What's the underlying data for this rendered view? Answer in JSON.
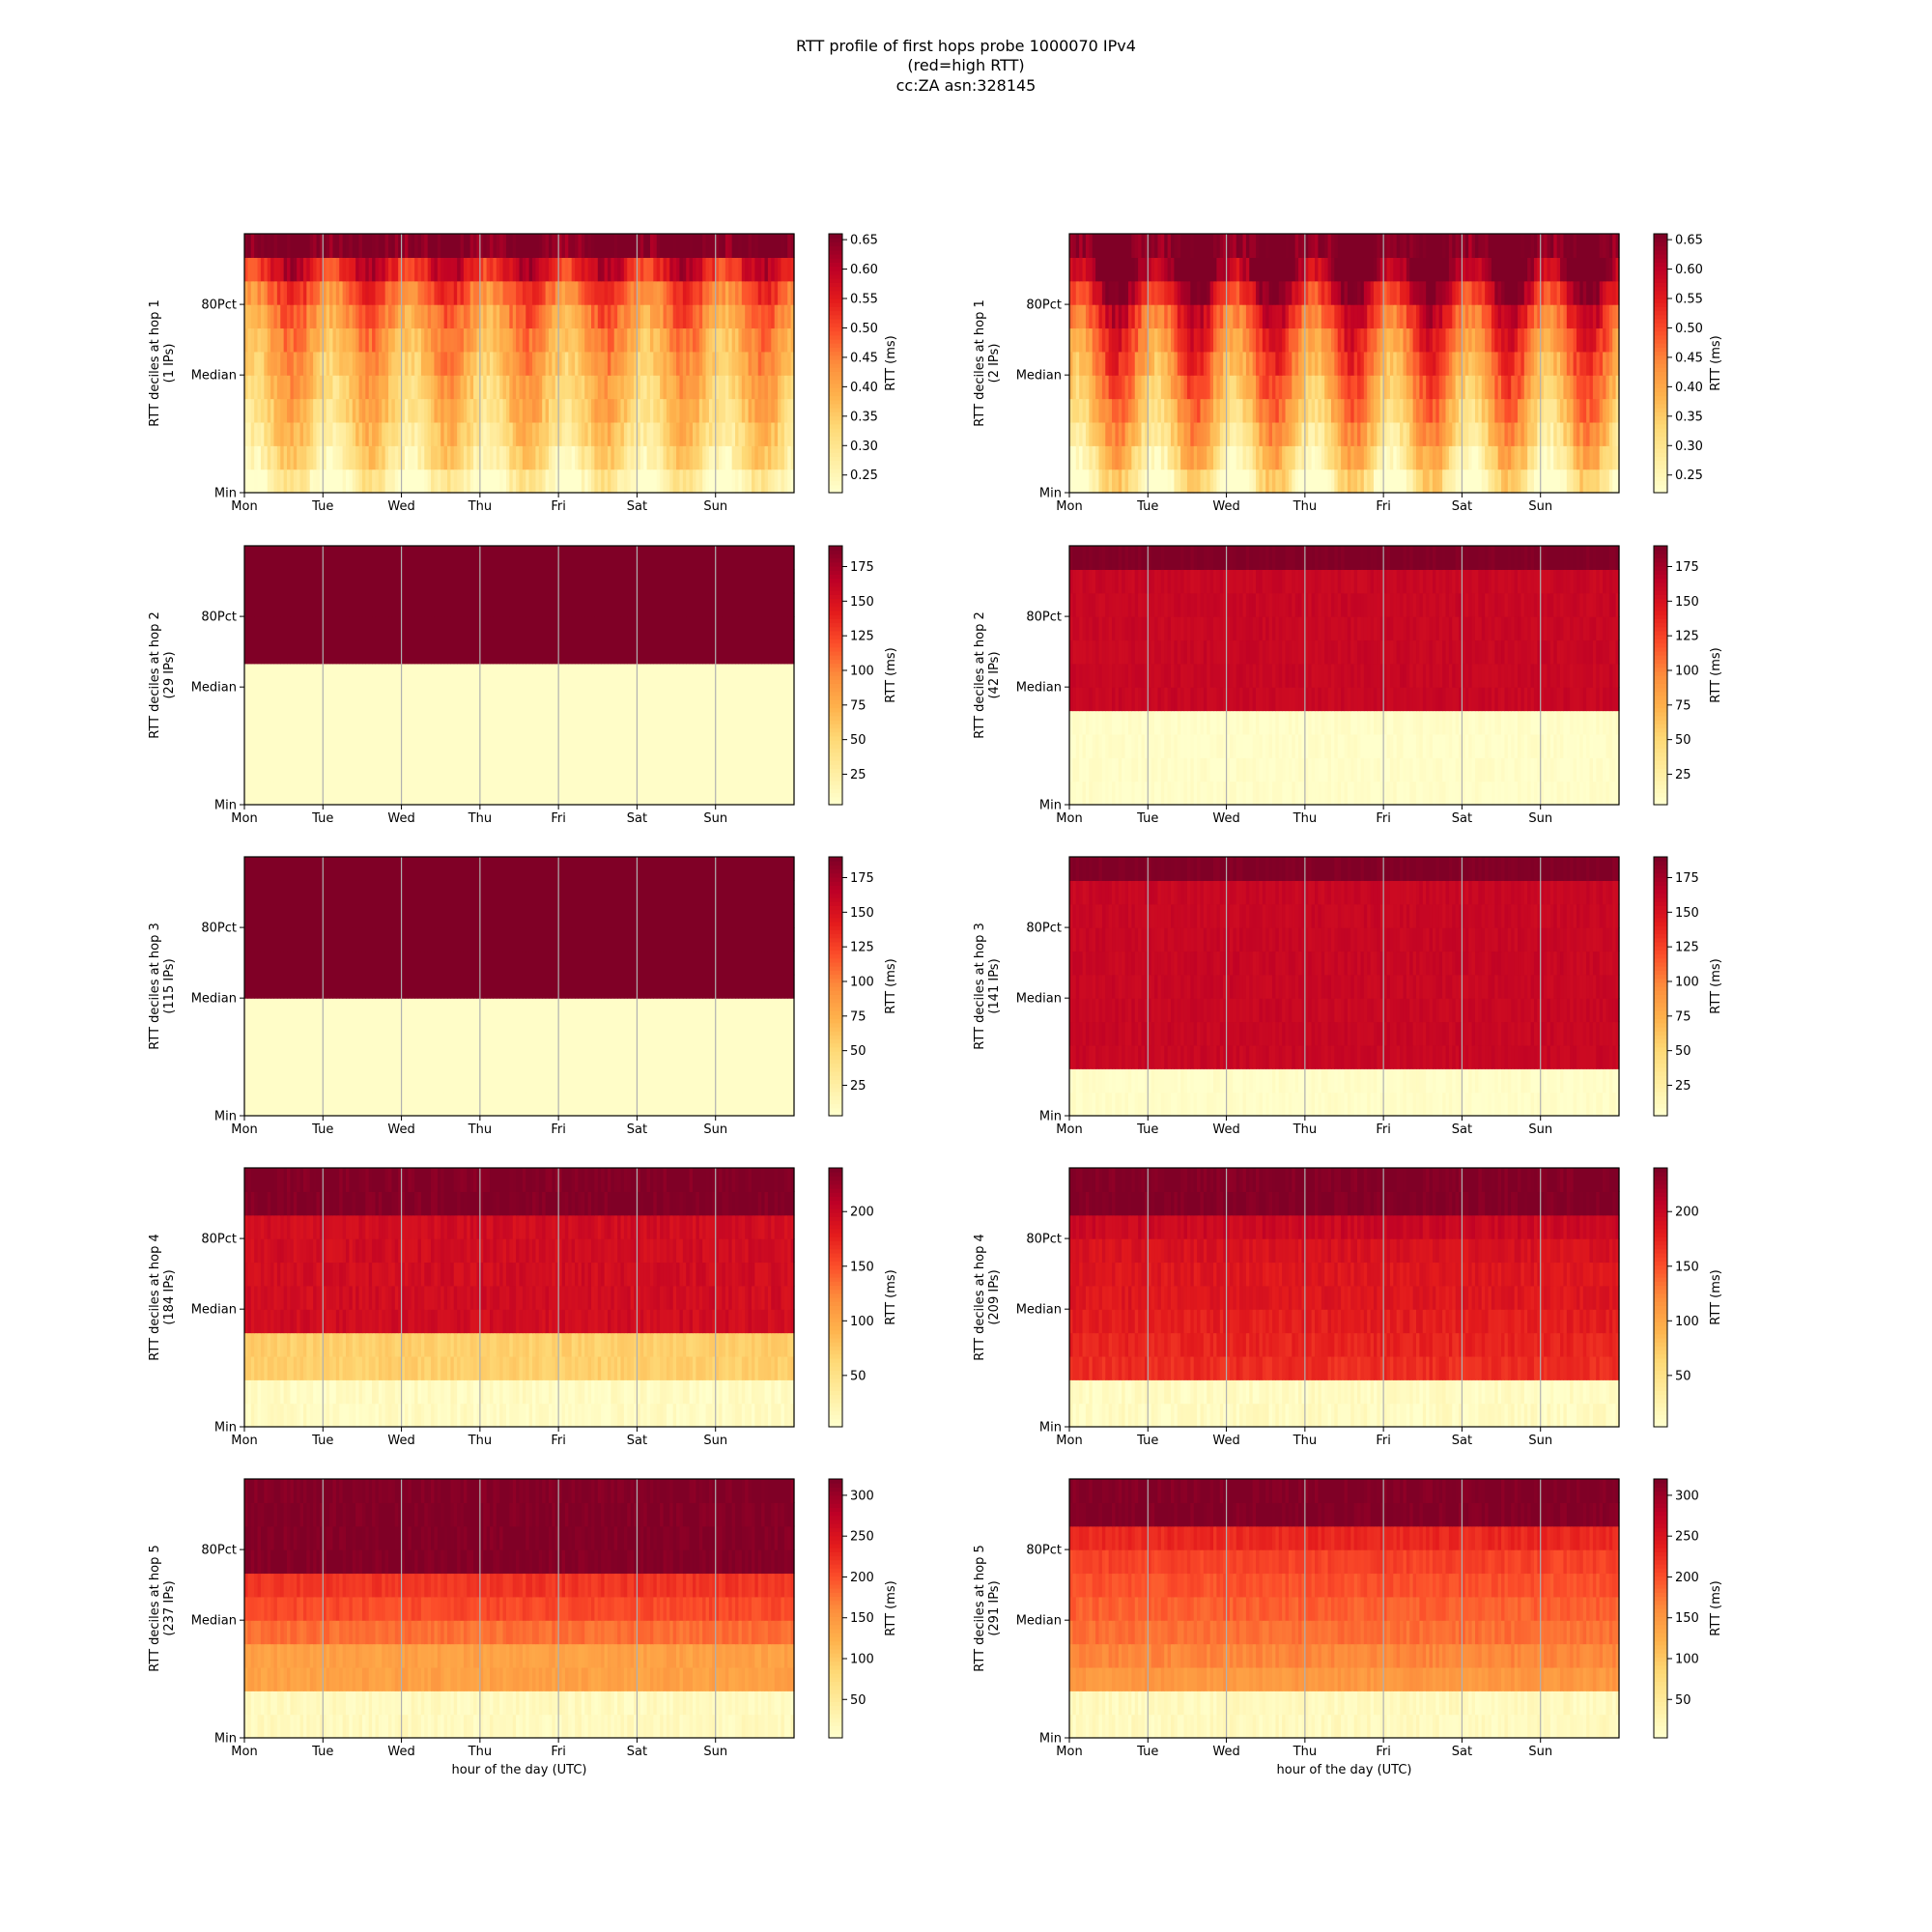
{
  "figure": {
    "title_lines": [
      "RTT profile of first hops probe 1000070 IPv4",
      "(red=high RTT)",
      "cc:ZA asn:328145"
    ],
    "xlabel": "hour of the day (UTC)",
    "colormap": "YlOrRd",
    "colormap_stops": [
      "#ffffcc",
      "#ffeda0",
      "#fed976",
      "#feb24c",
      "#fd8d3c",
      "#fc4e2a",
      "#e31a1c",
      "#bd0026",
      "#800026"
    ]
  },
  "chart_data": [
    {
      "type": "heatmap",
      "hop": 1,
      "ylabel_line1": "RTT deciles at hop 1",
      "ylabel_line2": "(1 IPs)",
      "x_ticks": [
        "Mon",
        "Tue",
        "Wed",
        "Thu",
        "Fri",
        "Sat",
        "Sun"
      ],
      "y_ticks": [
        "Min",
        "Median",
        "80Pct"
      ],
      "colorbar_label": "RTT (ms)",
      "colorbar_ticks": [
        0.25,
        0.3,
        0.35,
        0.4,
        0.45,
        0.5,
        0.55,
        0.6,
        0.65
      ],
      "colorbar_tick_labels": [
        "0.25",
        "0.30",
        "0.35",
        "0.40",
        "0.45",
        "0.50",
        "0.55",
        "0.60",
        "0.65"
      ],
      "color_range": [
        0.22,
        0.66
      ],
      "n_bins": 168,
      "decile_profile": [
        0.25,
        0.3,
        0.33,
        0.35,
        0.37,
        0.39,
        0.41,
        0.44,
        0.48,
        0.56,
        0.66
      ],
      "pattern": "daily_wave",
      "amplitude": 0.06,
      "noise": 0.03
    },
    {
      "type": "heatmap",
      "hop": 1,
      "ylabel_line1": "RTT deciles at hop 1",
      "ylabel_line2": "(2 IPs)",
      "x_ticks": [
        "Mon",
        "Tue",
        "Wed",
        "Thu",
        "Fri",
        "Sat",
        "Sun"
      ],
      "y_ticks": [
        "Min",
        "Median",
        "80Pct"
      ],
      "colorbar_label": "RTT (ms)",
      "colorbar_ticks": [
        0.25,
        0.3,
        0.35,
        0.4,
        0.45,
        0.5,
        0.55,
        0.6,
        0.65
      ],
      "colorbar_tick_labels": [
        "0.25",
        "0.30",
        "0.35",
        "0.40",
        "0.45",
        "0.50",
        "0.55",
        "0.60",
        "0.65"
      ],
      "color_range": [
        0.22,
        0.66
      ],
      "n_bins": 168,
      "decile_profile": [
        0.27,
        0.32,
        0.36,
        0.39,
        0.42,
        0.45,
        0.48,
        0.52,
        0.58,
        0.66,
        0.66
      ],
      "pattern": "daily_wave",
      "amplitude": 0.09,
      "noise": 0.03
    },
    {
      "type": "heatmap",
      "hop": 2,
      "ylabel_line1": "RTT deciles at hop 2",
      "ylabel_line2": "(29 IPs)",
      "x_ticks": [
        "Mon",
        "Tue",
        "Wed",
        "Thu",
        "Fri",
        "Sat",
        "Sun"
      ],
      "y_ticks": [
        "Min",
        "Median",
        "80Pct"
      ],
      "colorbar_label": "RTT (ms)",
      "colorbar_ticks": [
        25,
        50,
        75,
        100,
        125,
        150,
        175
      ],
      "colorbar_tick_labels": [
        "25",
        "50",
        "75",
        "100",
        "125",
        "150",
        "175"
      ],
      "color_range": [
        3,
        190
      ],
      "n_bins": 168,
      "decile_profile": [
        5,
        5,
        5,
        5,
        5,
        5,
        190,
        190,
        190,
        190,
        190
      ],
      "pattern": "flat",
      "amplitude": 0,
      "noise": 0
    },
    {
      "type": "heatmap",
      "hop": 2,
      "ylabel_line1": "RTT deciles at hop 2",
      "ylabel_line2": "(42 IPs)",
      "x_ticks": [
        "Mon",
        "Tue",
        "Wed",
        "Thu",
        "Fri",
        "Sat",
        "Sun"
      ],
      "y_ticks": [
        "Min",
        "Median",
        "80Pct"
      ],
      "colorbar_label": "RTT (ms)",
      "colorbar_ticks": [
        25,
        50,
        75,
        100,
        125,
        150,
        175
      ],
      "colorbar_tick_labels": [
        "25",
        "50",
        "75",
        "100",
        "125",
        "150",
        "175"
      ],
      "color_range": [
        3,
        190
      ],
      "n_bins": 168,
      "decile_profile": [
        5,
        5,
        5,
        5,
        160,
        160,
        160,
        160,
        160,
        160,
        190
      ],
      "pattern": "flat",
      "amplitude": 0,
      "noise": 4
    },
    {
      "type": "heatmap",
      "hop": 3,
      "ylabel_line1": "RTT deciles at hop 3",
      "ylabel_line2": "(115 IPs)",
      "x_ticks": [
        "Mon",
        "Tue",
        "Wed",
        "Thu",
        "Fri",
        "Sat",
        "Sun"
      ],
      "y_ticks": [
        "Min",
        "Median",
        "80Pct"
      ],
      "colorbar_label": "RTT (ms)",
      "colorbar_ticks": [
        25,
        50,
        75,
        100,
        125,
        150,
        175
      ],
      "colorbar_tick_labels": [
        "25",
        "50",
        "75",
        "100",
        "125",
        "150",
        "175"
      ],
      "color_range": [
        3,
        190
      ],
      "n_bins": 168,
      "decile_profile": [
        5,
        5,
        5,
        5,
        5,
        190,
        190,
        190,
        190,
        190,
        190
      ],
      "pattern": "flat",
      "amplitude": 0,
      "noise": 0
    },
    {
      "type": "heatmap",
      "hop": 3,
      "ylabel_line1": "RTT deciles at hop 3",
      "ylabel_line2": "(141 IPs)",
      "x_ticks": [
        "Mon",
        "Tue",
        "Wed",
        "Thu",
        "Fri",
        "Sat",
        "Sun"
      ],
      "y_ticks": [
        "Min",
        "Median",
        "80Pct"
      ],
      "colorbar_label": "RTT (ms)",
      "colorbar_ticks": [
        25,
        50,
        75,
        100,
        125,
        150,
        175
      ],
      "colorbar_tick_labels": [
        "25",
        "50",
        "75",
        "100",
        "125",
        "150",
        "175"
      ],
      "color_range": [
        3,
        190
      ],
      "n_bins": 168,
      "decile_profile": [
        5,
        5,
        160,
        160,
        160,
        160,
        160,
        160,
        160,
        160,
        190
      ],
      "pattern": "flat",
      "amplitude": 0,
      "noise": 4
    },
    {
      "type": "heatmap",
      "hop": 4,
      "ylabel_line1": "RTT deciles at hop 4",
      "ylabel_line2": "(184 IPs)",
      "x_ticks": [
        "Mon",
        "Tue",
        "Wed",
        "Thu",
        "Fri",
        "Sat",
        "Sun"
      ],
      "y_ticks": [
        "Min",
        "Median",
        "80Pct"
      ],
      "colorbar_label": "RTT (ms)",
      "colorbar_ticks": [
        50,
        100,
        150,
        200
      ],
      "colorbar_tick_labels": [
        "50",
        "100",
        "150",
        "200"
      ],
      "color_range": [
        3,
        240
      ],
      "n_bins": 168,
      "decile_profile": [
        10,
        10,
        70,
        70,
        195,
        195,
        195,
        195,
        195,
        240,
        240
      ],
      "pattern": "flat",
      "amplitude": 0,
      "noise": 8
    },
    {
      "type": "heatmap",
      "hop": 4,
      "ylabel_line1": "RTT deciles at hop 4",
      "ylabel_line2": "(209 IPs)",
      "x_ticks": [
        "Mon",
        "Tue",
        "Wed",
        "Thu",
        "Fri",
        "Sat",
        "Sun"
      ],
      "y_ticks": [
        "Min",
        "Median",
        "80Pct"
      ],
      "colorbar_label": "RTT (ms)",
      "colorbar_ticks": [
        50,
        100,
        150,
        200
      ],
      "colorbar_tick_labels": [
        "50",
        "100",
        "150",
        "200"
      ],
      "color_range": [
        3,
        240
      ],
      "n_bins": 168,
      "decile_profile": [
        10,
        10,
        170,
        175,
        180,
        185,
        185,
        190,
        200,
        240,
        240
      ],
      "pattern": "flat",
      "amplitude": 0,
      "noise": 8
    },
    {
      "type": "heatmap",
      "hop": 5,
      "ylabel_line1": "RTT deciles at hop 5",
      "ylabel_line2": "(237 IPs)",
      "x_ticks": [
        "Mon",
        "Tue",
        "Wed",
        "Thu",
        "Fri",
        "Sat",
        "Sun"
      ],
      "y_ticks": [
        "Min",
        "Median",
        "80Pct"
      ],
      "colorbar_label": "RTT (ms)",
      "colorbar_ticks": [
        50,
        100,
        150,
        200,
        250,
        300
      ],
      "colorbar_tick_labels": [
        "50",
        "100",
        "150",
        "200",
        "250",
        "300"
      ],
      "color_range": [
        3,
        320
      ],
      "n_bins": 168,
      "decile_profile": [
        15,
        15,
        140,
        140,
        180,
        205,
        220,
        320,
        320,
        320,
        320
      ],
      "pattern": "flat",
      "amplitude": 0,
      "noise": 10
    },
    {
      "type": "heatmap",
      "hop": 5,
      "ylabel_line1": "RTT deciles at hop 5",
      "ylabel_line2": "(291 IPs)",
      "x_ticks": [
        "Mon",
        "Tue",
        "Wed",
        "Thu",
        "Fri",
        "Sat",
        "Sun"
      ],
      "y_ticks": [
        "Min",
        "Median",
        "80Pct"
      ],
      "colorbar_label": "RTT (ms)",
      "colorbar_ticks": [
        50,
        100,
        150,
        200,
        250,
        300
      ],
      "colorbar_tick_labels": [
        "50",
        "100",
        "150",
        "200",
        "250",
        "300"
      ],
      "color_range": [
        3,
        320
      ],
      "n_bins": 168,
      "decile_profile": [
        15,
        15,
        150,
        165,
        180,
        190,
        200,
        210,
        230,
        320,
        320
      ],
      "pattern": "flat",
      "amplitude": 0,
      "noise": 10
    }
  ]
}
